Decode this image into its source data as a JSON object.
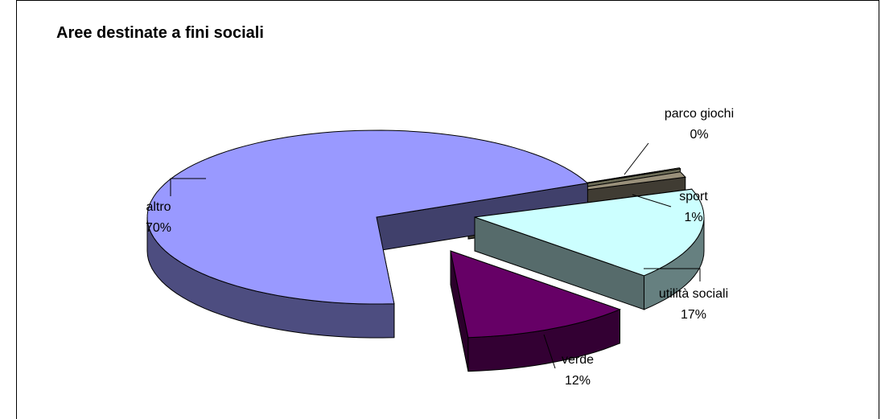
{
  "chart_data": {
    "type": "pie",
    "subtype": "3d-exploded",
    "title": "Aree destinate a fini sociali",
    "legend": "none",
    "slices": [
      {
        "name": "altro",
        "value": 70,
        "label": "70%",
        "color": "#9999FF"
      },
      {
        "name": "verde",
        "value": 12,
        "label": "12%",
        "color": "#660066"
      },
      {
        "name": "utilità sociali",
        "value": 17,
        "label": "17%",
        "color": "#CCFFFF"
      },
      {
        "name": "sport",
        "value": 1,
        "label": "1%",
        "color": "#99907A"
      },
      {
        "name": "parco giochi",
        "value": 0,
        "label": "0%",
        "color": "#FFFFCC"
      }
    ]
  }
}
